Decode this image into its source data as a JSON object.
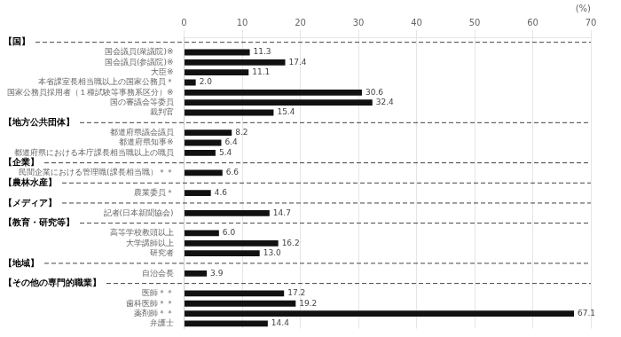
{
  "chart_data": {
    "type": "bar",
    "orientation": "horizontal",
    "categories": [
      "国会議員(衆議院)※",
      "国会議員(参議院)※",
      "大臣※",
      "本省課室長相当職以上の国家公務員＊",
      "国家公務員採用者（１種試験等事務系区分）※",
      "国の審議会等委員",
      "裁判官",
      "都道府県議会議員",
      "都道府県知事※",
      "都道府県における本庁課長相当職以上の職員",
      "民間企業における管理職(課長相当職）＊＊",
      "農業委員＊",
      "記者(日本新聞協会)",
      "高等学校教頭以上",
      "大学講師以上",
      "研究者",
      "自治会長",
      "医師＊＊",
      "歯科医師＊＊",
      "薬剤師＊＊",
      "弁護士"
    ],
    "values": [
      11.3,
      17.4,
      11.1,
      2.0,
      30.6,
      32.4,
      15.4,
      8.2,
      6.4,
      5.4,
      6.6,
      4.6,
      14.7,
      6.0,
      16.2,
      13.0,
      3.9,
      17.2,
      19.2,
      67.1,
      14.4
    ],
    "value_labels": [
      "11.3",
      "17.4",
      "11.1",
      "2.0",
      "30.6",
      "32.4",
      "15.4",
      "8.2",
      "6.4",
      "5.4",
      "6.6",
      "4.6",
      "14.7",
      "6.0",
      "16.2",
      "13.0",
      "3.9",
      "17.2",
      "19.2",
      "67.1",
      "14.4"
    ],
    "color": "#111111",
    "xlim": [
      0,
      70
    ],
    "xticks": [
      0,
      10,
      20,
      30,
      40,
      50,
      60,
      70
    ],
    "xlabel": "(%)",
    "grid": true,
    "data_labels": true,
    "annotations": [
      {
        "text": "【国】",
        "before": "国会議員(衆議院)※"
      },
      {
        "text": "【地方公共団体】",
        "before": "都道府県議会議員"
      },
      {
        "text": "【企業】",
        "before": "民間企業における管理職(課長相当職）＊＊"
      },
      {
        "text": "【農林水産】",
        "before": "農業委員＊"
      },
      {
        "text": "【メディア】",
        "before": "記者(日本新聞協会)"
      },
      {
        "text": "【教育・研究等】",
        "before": "高等学校教頭以上"
      },
      {
        "text": "【地域】",
        "before": "自治会長"
      },
      {
        "text": "【その他の専門的職業】",
        "before": "医師＊＊"
      }
    ]
  }
}
